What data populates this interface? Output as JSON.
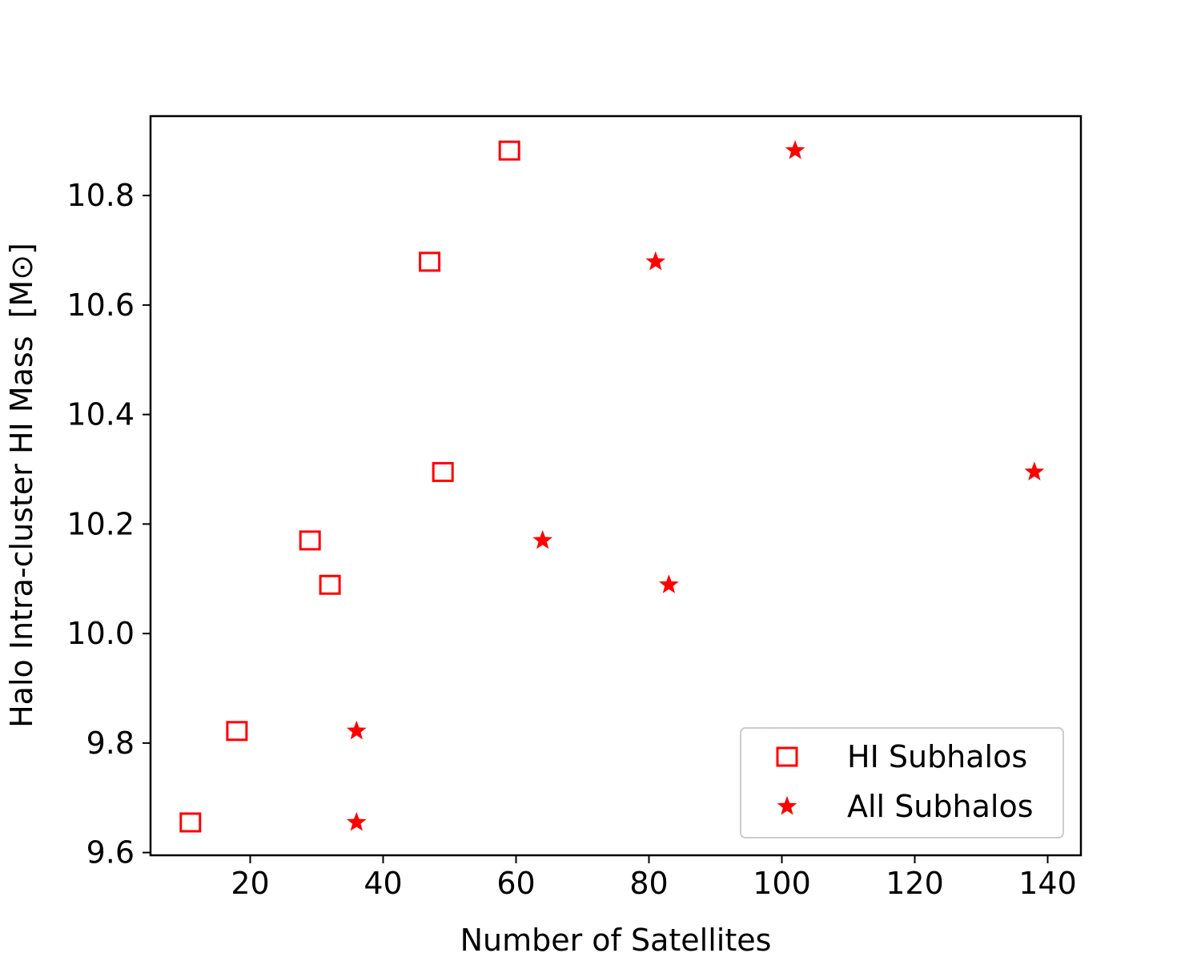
{
  "chart_data": {
    "type": "scatter",
    "xlabel": "Number of Satellites",
    "ylabel": "Halo Intra-cluster HI Mass",
    "ylabel_unit": "[M⊙]",
    "xlim": [
      5,
      145
    ],
    "ylim": [
      9.595,
      10.945
    ],
    "xticks": [
      20,
      40,
      60,
      80,
      100,
      120,
      140
    ],
    "yticks": [
      9.6,
      9.8,
      10.0,
      10.2,
      10.4,
      10.6,
      10.8
    ],
    "grid": false,
    "legend_position": "bottom-right",
    "series": [
      {
        "name": "HI Subhalos",
        "marker": "square-open",
        "color": "#ff0000",
        "points": [
          {
            "x": 11,
            "y": 9.655
          },
          {
            "x": 18,
            "y": 9.822
          },
          {
            "x": 29,
            "y": 10.17
          },
          {
            "x": 32,
            "y": 10.089
          },
          {
            "x": 47,
            "y": 10.679
          },
          {
            "x": 49,
            "y": 10.295
          },
          {
            "x": 59,
            "y": 10.882
          }
        ]
      },
      {
        "name": "All Subhalos",
        "marker": "star",
        "color": "#ff0000",
        "points": [
          {
            "x": 36,
            "y": 9.655
          },
          {
            "x": 36,
            "y": 9.822
          },
          {
            "x": 64,
            "y": 10.17
          },
          {
            "x": 83,
            "y": 10.089
          },
          {
            "x": 81,
            "y": 10.679
          },
          {
            "x": 138,
            "y": 10.295
          },
          {
            "x": 102,
            "y": 10.882
          }
        ]
      }
    ]
  }
}
